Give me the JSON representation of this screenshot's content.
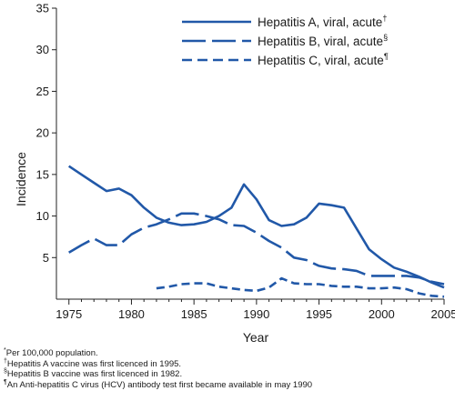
{
  "chart_data": {
    "type": "line",
    "xlabel": "Year",
    "ylabel": "Incidence",
    "xlim": [
      1974,
      2005
    ],
    "ylim": [
      0,
      35
    ],
    "x_ticks": [
      1975,
      1980,
      1985,
      1990,
      1995,
      2000,
      2005
    ],
    "y_ticks": [
      5,
      10,
      15,
      20,
      25,
      30,
      35
    ],
    "grid": false,
    "legend_position": "top-right",
    "line_color": "#2158a8",
    "series": [
      {
        "name": "Hepatitis A, viral, acute",
        "marker": "†",
        "dash": "solid",
        "points": [
          [
            1975,
            16.0
          ],
          [
            1976,
            15.0
          ],
          [
            1977,
            14.0
          ],
          [
            1978,
            13.0
          ],
          [
            1979,
            13.3
          ],
          [
            1980,
            12.5
          ],
          [
            1981,
            11.0
          ],
          [
            1982,
            9.8
          ],
          [
            1983,
            9.2
          ],
          [
            1984,
            8.9
          ],
          [
            1985,
            9.0
          ],
          [
            1986,
            9.3
          ],
          [
            1987,
            10.0
          ],
          [
            1988,
            11.0
          ],
          [
            1989,
            13.8
          ],
          [
            1990,
            12.0
          ],
          [
            1991,
            9.5
          ],
          [
            1992,
            8.8
          ],
          [
            1993,
            9.0
          ],
          [
            1994,
            9.8
          ],
          [
            1995,
            11.5
          ],
          [
            1996,
            11.3
          ],
          [
            1997,
            11.0
          ],
          [
            1998,
            8.5
          ],
          [
            1999,
            6.0
          ],
          [
            2000,
            4.8
          ],
          [
            2001,
            3.8
          ],
          [
            2002,
            3.3
          ],
          [
            2003,
            2.7
          ],
          [
            2004,
            2.0
          ],
          [
            2005,
            1.4
          ]
        ]
      },
      {
        "name": "Hepatitis B, viral, acute",
        "marker": "§",
        "dash": "long",
        "points": [
          [
            1975,
            5.6
          ],
          [
            1976,
            6.5
          ],
          [
            1977,
            7.3
          ],
          [
            1978,
            6.5
          ],
          [
            1979,
            6.5
          ],
          [
            1980,
            7.8
          ],
          [
            1981,
            8.6
          ],
          [
            1982,
            9.0
          ],
          [
            1983,
            9.6
          ],
          [
            1984,
            10.3
          ],
          [
            1985,
            10.3
          ],
          [
            1986,
            10.0
          ],
          [
            1987,
            9.6
          ],
          [
            1988,
            8.9
          ],
          [
            1989,
            8.8
          ],
          [
            1990,
            8.0
          ],
          [
            1991,
            7.0
          ],
          [
            1992,
            6.2
          ],
          [
            1993,
            5.0
          ],
          [
            1994,
            4.7
          ],
          [
            1995,
            4.0
          ],
          [
            1996,
            3.7
          ],
          [
            1997,
            3.6
          ],
          [
            1998,
            3.4
          ],
          [
            1999,
            2.8
          ],
          [
            2000,
            2.8
          ],
          [
            2001,
            2.8
          ],
          [
            2002,
            2.8
          ],
          [
            2003,
            2.6
          ],
          [
            2004,
            2.1
          ],
          [
            2005,
            1.8
          ]
        ]
      },
      {
        "name": "Hepatitis C, viral, acute",
        "marker": "¶",
        "dash": "short",
        "points": [
          [
            1982,
            1.3
          ],
          [
            1983,
            1.5
          ],
          [
            1984,
            1.8
          ],
          [
            1985,
            1.9
          ],
          [
            1986,
            1.9
          ],
          [
            1987,
            1.5
          ],
          [
            1988,
            1.3
          ],
          [
            1989,
            1.1
          ],
          [
            1990,
            1.0
          ],
          [
            1991,
            1.4
          ],
          [
            1992,
            2.5
          ],
          [
            1993,
            1.9
          ],
          [
            1994,
            1.8
          ],
          [
            1995,
            1.8
          ],
          [
            1996,
            1.6
          ],
          [
            1997,
            1.5
          ],
          [
            1998,
            1.5
          ],
          [
            1999,
            1.3
          ],
          [
            2000,
            1.3
          ],
          [
            2001,
            1.4
          ],
          [
            2002,
            1.2
          ],
          [
            2003,
            0.7
          ],
          [
            2004,
            0.4
          ],
          [
            2005,
            0.3
          ]
        ]
      }
    ]
  },
  "footnotes": [
    {
      "marker": "*",
      "text": "Per 100,000 population."
    },
    {
      "marker": "†",
      "text": "Hepatitis A vaccine was first licenced in 1995."
    },
    {
      "marker": "§",
      "text": "Hepatitis B vaccine was first licenced in 1982."
    },
    {
      "marker": "¶",
      "text": "An Anti-hepatitis C virus (HCV) antibody test first became available in may 1990"
    }
  ]
}
